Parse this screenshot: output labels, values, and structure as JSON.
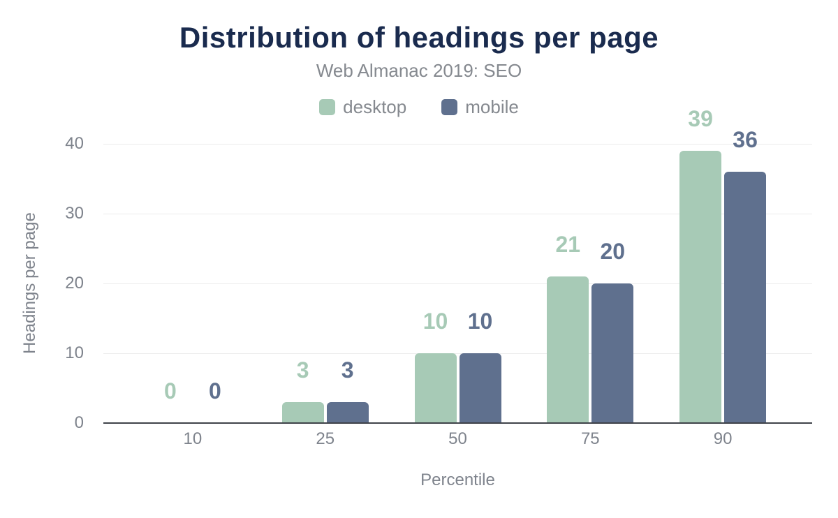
{
  "chart_data": {
    "type": "bar",
    "title": "Distribution of headings per page",
    "subtitle": "Web Almanac 2019: SEO",
    "xlabel": "Percentile",
    "ylabel": "Headings per page",
    "categories": [
      "10",
      "25",
      "50",
      "75",
      "90"
    ],
    "series": [
      {
        "name": "desktop",
        "color": "#a7cab6",
        "values": [
          0,
          3,
          10,
          21,
          39
        ]
      },
      {
        "name": "mobile",
        "color": "#5f708e",
        "values": [
          0,
          3,
          10,
          20,
          36
        ]
      }
    ],
    "ylim": [
      0,
      40
    ],
    "yticks": [
      0,
      10,
      20,
      30,
      40
    ],
    "grid": "horizontal",
    "legend_position": "top",
    "data_labels": true
  },
  "colors": {
    "desktop": "#a7cab6",
    "mobile": "#5f708e",
    "title": "#1a2b4e",
    "muted_text": "#85898f",
    "axis_text": "#7e838c",
    "axis_line": "#3f4349",
    "gridline": "#ececec",
    "background": "#ffffff"
  }
}
